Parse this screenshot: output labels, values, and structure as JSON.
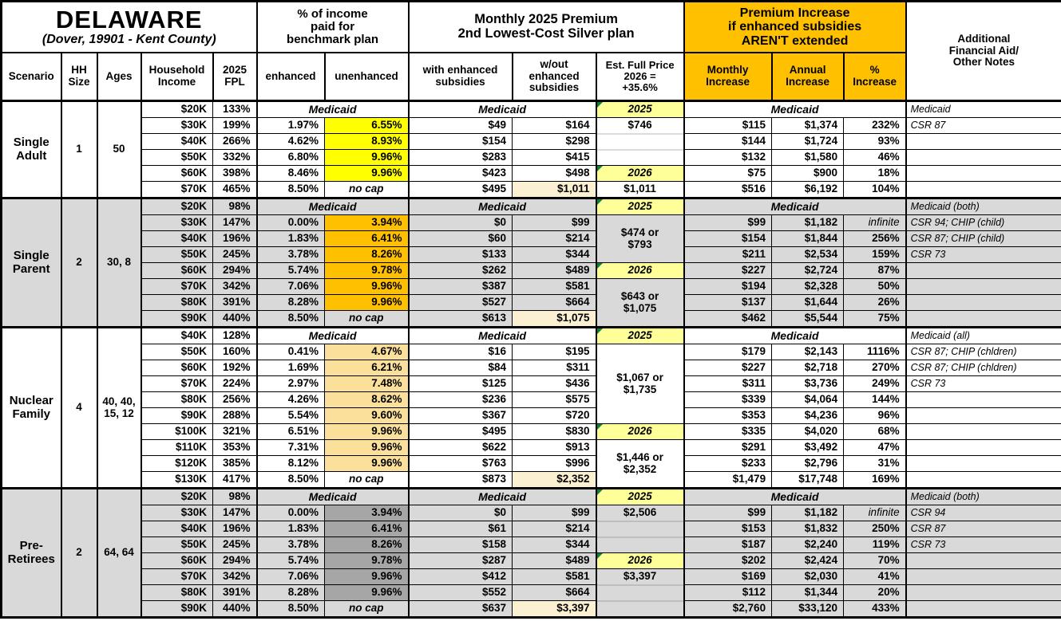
{
  "title": {
    "state": "DELAWARE",
    "location": "(Dover, 19901 - Kent County)"
  },
  "group_headers": {
    "income_pct": "% of income\npaid for\nbenchmark plan",
    "premium": "Monthly 2025 Premium\n2nd Lowest-Cost Silver plan",
    "increase": "Premium Increase\nif enhanced subsidies\nAREN'T extended",
    "notes": "Additional\nFinancial Aid/\nOther Notes"
  },
  "column_headers": {
    "scenario": "Scenario",
    "hh_size": "HH\nSize",
    "ages": "Ages",
    "income": "Household\nIncome",
    "fpl": "2025\nFPL",
    "enhanced": "enhanced",
    "unenhanced": "unenhanced",
    "with_sub": "with enhanced\nsubsidies",
    "wout_sub": "w/out\nenhanced\nsubsidies",
    "full_price": "Est. Full Price\n2026 =\n+35.6%",
    "monthly": "Monthly\nIncrease",
    "annual": "Annual\nIncrease",
    "pct": "%\nIncrease"
  },
  "labels": {
    "medicaid": "Medicaid",
    "no_cap": "no cap",
    "infinite": "infinite"
  },
  "colors": {
    "header_orange": "#FFC000",
    "yellow_highlight": "#FFFF00",
    "orange_highlight": "#FFC000",
    "gold_highlight": "#FBE09C",
    "dark_gray_highlight": "#A6A6A6",
    "cream_highlight": "#FCF0D2",
    "year_yellow": "#FFFF99",
    "section_gray": "#D9D9D9",
    "white": "#FFFFFF",
    "triangle_green": "#0C8040"
  },
  "sections": [
    {
      "name": "single-adult",
      "label": "Single\nAdult",
      "hh_size": "1",
      "ages": "50",
      "bg": "#FFFFFF",
      "unenhanced_bg": "#FFFF00",
      "rows": [
        {
          "income": "$20K",
          "fpl": "133%",
          "medicaid": true,
          "note": "Medicaid"
        },
        {
          "income": "$30K",
          "fpl": "199%",
          "enhanced": "1.97%",
          "unenhanced": "6.55%",
          "with_sub": "$49",
          "wout_sub": "$164",
          "monthly": "$115",
          "annual": "$1,374",
          "pct": "232%",
          "note": "CSR 87"
        },
        {
          "income": "$40K",
          "fpl": "266%",
          "enhanced": "4.62%",
          "unenhanced": "8.93%",
          "with_sub": "$154",
          "wout_sub": "$298",
          "monthly": "$144",
          "annual": "$1,724",
          "pct": "93%",
          "note": ""
        },
        {
          "income": "$50K",
          "fpl": "332%",
          "enhanced": "6.80%",
          "unenhanced": "9.96%",
          "with_sub": "$283",
          "wout_sub": "$415",
          "monthly": "$132",
          "annual": "$1,580",
          "pct": "46%",
          "note": ""
        },
        {
          "income": "$60K",
          "fpl": "398%",
          "enhanced": "8.46%",
          "unenhanced": "9.96%",
          "with_sub": "$423",
          "wout_sub": "$498",
          "monthly": "$75",
          "annual": "$900",
          "pct": "18%",
          "note": ""
        },
        {
          "income": "$70K",
          "fpl": "465%",
          "enhanced": "8.50%",
          "unenhanced": "no cap",
          "no_cap": true,
          "with_sub": "$495",
          "wout_sub": "$1,011",
          "wout_highlight": true,
          "monthly": "$516",
          "annual": "$6,192",
          "pct": "104%",
          "note": ""
        }
      ],
      "full_price": [
        {
          "row": 0,
          "span": 1,
          "text": "2025",
          "year": true
        },
        {
          "row": 1,
          "span": 3,
          "text": "$746",
          "valign": "top",
          "faint": true
        },
        {
          "row": 4,
          "span": 1,
          "text": "2026",
          "year": true
        },
        {
          "row": 5,
          "span": 1,
          "text": "$1,011"
        }
      ]
    },
    {
      "name": "single-parent",
      "label": "Single\nParent",
      "hh_size": "2",
      "ages": "30, 8",
      "bg": "#D9D9D9",
      "unenhanced_bg": "#FFC000",
      "rows": [
        {
          "income": "$20K",
          "fpl": "98%",
          "medicaid": true,
          "note": "Medicaid (both)"
        },
        {
          "income": "$30K",
          "fpl": "147%",
          "enhanced": "0.00%",
          "unenhanced": "3.94%",
          "with_sub": "$0",
          "wout_sub": "$99",
          "monthly": "$99",
          "annual": "$1,182",
          "pct": "infinite",
          "note": "CSR 94; CHIP (child)"
        },
        {
          "income": "$40K",
          "fpl": "196%",
          "enhanced": "1.83%",
          "unenhanced": "6.41%",
          "with_sub": "$60",
          "wout_sub": "$214",
          "monthly": "$154",
          "annual": "$1,844",
          "pct": "256%",
          "note": "CSR 87; CHIP (child)"
        },
        {
          "income": "$50K",
          "fpl": "245%",
          "enhanced": "3.78%",
          "unenhanced": "8.26%",
          "with_sub": "$133",
          "wout_sub": "$344",
          "monthly": "$211",
          "annual": "$2,534",
          "pct": "159%",
          "note": "CSR 73"
        },
        {
          "income": "$60K",
          "fpl": "294%",
          "enhanced": "5.74%",
          "unenhanced": "9.78%",
          "with_sub": "$262",
          "wout_sub": "$489",
          "monthly": "$227",
          "annual": "$2,724",
          "pct": "87%",
          "note": ""
        },
        {
          "income": "$70K",
          "fpl": "342%",
          "enhanced": "7.06%",
          "unenhanced": "9.96%",
          "with_sub": "$387",
          "wout_sub": "$581",
          "monthly": "$194",
          "annual": "$2,328",
          "pct": "50%",
          "note": ""
        },
        {
          "income": "$80K",
          "fpl": "391%",
          "enhanced": "8.28%",
          "unenhanced": "9.96%",
          "with_sub": "$527",
          "wout_sub": "$664",
          "monthly": "$137",
          "annual": "$1,644",
          "pct": "26%",
          "note": ""
        },
        {
          "income": "$90K",
          "fpl": "440%",
          "enhanced": "8.50%",
          "unenhanced": "no cap",
          "no_cap": true,
          "with_sub": "$613",
          "wout_sub": "$1,075",
          "wout_highlight": true,
          "monthly": "$462",
          "annual": "$5,544",
          "pct": "75%",
          "note": ""
        }
      ],
      "full_price": [
        {
          "row": 0,
          "span": 1,
          "text": "2025",
          "year": true
        },
        {
          "row": 1,
          "span": 3,
          "text": "$474 or\n$793"
        },
        {
          "row": 4,
          "span": 1,
          "text": "2026",
          "year": true
        },
        {
          "row": 5,
          "span": 3,
          "text": "$643 or\n$1,075"
        }
      ]
    },
    {
      "name": "nuclear-family",
      "label": "Nuclear\nFamily",
      "hh_size": "4",
      "ages": "40, 40,\n15, 12",
      "bg": "#FFFFFF",
      "unenhanced_bg": "#FBE09C",
      "rows": [
        {
          "income": "$40K",
          "fpl": "128%",
          "medicaid": true,
          "note": "Medicaid (all)"
        },
        {
          "income": "$50K",
          "fpl": "160%",
          "enhanced": "0.41%",
          "unenhanced": "4.67%",
          "with_sub": "$16",
          "wout_sub": "$195",
          "monthly": "$179",
          "annual": "$2,143",
          "pct": "1116%",
          "note": "CSR 87; CHIP (chldren)"
        },
        {
          "income": "$60K",
          "fpl": "192%",
          "enhanced": "1.69%",
          "unenhanced": "6.21%",
          "with_sub": "$84",
          "wout_sub": "$311",
          "monthly": "$227",
          "annual": "$2,718",
          "pct": "270%",
          "note": "CSR 87; CHIP (chldren)"
        },
        {
          "income": "$70K",
          "fpl": "224%",
          "enhanced": "2.97%",
          "unenhanced": "7.48%",
          "with_sub": "$125",
          "wout_sub": "$436",
          "monthly": "$311",
          "annual": "$3,736",
          "pct": "249%",
          "note": "CSR 73"
        },
        {
          "income": "$80K",
          "fpl": "256%",
          "enhanced": "4.26%",
          "unenhanced": "8.62%",
          "with_sub": "$236",
          "wout_sub": "$575",
          "monthly": "$339",
          "annual": "$4,064",
          "pct": "144%",
          "note": ""
        },
        {
          "income": "$90K",
          "fpl": "288%",
          "enhanced": "5.54%",
          "unenhanced": "9.60%",
          "with_sub": "$367",
          "wout_sub": "$720",
          "monthly": "$353",
          "annual": "$4,236",
          "pct": "96%",
          "note": ""
        },
        {
          "income": "$100K",
          "fpl": "321%",
          "enhanced": "6.51%",
          "unenhanced": "9.96%",
          "with_sub": "$495",
          "wout_sub": "$830",
          "monthly": "$335",
          "annual": "$4,020",
          "pct": "68%",
          "note": ""
        },
        {
          "income": "$110K",
          "fpl": "353%",
          "enhanced": "7.31%",
          "unenhanced": "9.96%",
          "with_sub": "$622",
          "wout_sub": "$913",
          "monthly": "$291",
          "annual": "$3,492",
          "pct": "47%",
          "note": ""
        },
        {
          "income": "$120K",
          "fpl": "385%",
          "enhanced": "8.12%",
          "unenhanced": "9.96%",
          "with_sub": "$763",
          "wout_sub": "$996",
          "monthly": "$233",
          "annual": "$2,796",
          "pct": "31%",
          "note": ""
        },
        {
          "income": "$130K",
          "fpl": "417%",
          "enhanced": "8.50%",
          "unenhanced": "no cap",
          "no_cap": true,
          "with_sub": "$873",
          "wout_sub": "$2,352",
          "wout_highlight": true,
          "monthly": "$1,479",
          "annual": "$17,748",
          "pct": "169%",
          "note": ""
        }
      ],
      "full_price": [
        {
          "row": 0,
          "span": 1,
          "text": "2025",
          "year": true
        },
        {
          "row": 1,
          "span": 5,
          "text": "$1,067 or\n$1,735"
        },
        {
          "row": 6,
          "span": 1,
          "text": "2026",
          "year": true
        },
        {
          "row": 7,
          "span": 3,
          "text": "$1,446 or\n$2,352"
        }
      ]
    },
    {
      "name": "pre-retirees",
      "label": "Pre-\nRetirees",
      "hh_size": "2",
      "ages": "64, 64",
      "bg": "#D9D9D9",
      "unenhanced_bg": "#A6A6A6",
      "rows": [
        {
          "income": "$20K",
          "fpl": "98%",
          "medicaid": true,
          "note": "Medicaid (both)"
        },
        {
          "income": "$30K",
          "fpl": "147%",
          "enhanced": "0.00%",
          "unenhanced": "3.94%",
          "with_sub": "$0",
          "wout_sub": "$99",
          "monthly": "$99",
          "annual": "$1,182",
          "pct": "infinite",
          "note": "CSR 94"
        },
        {
          "income": "$40K",
          "fpl": "196%",
          "enhanced": "1.83%",
          "unenhanced": "6.41%",
          "with_sub": "$61",
          "wout_sub": "$214",
          "monthly": "$153",
          "annual": "$1,832",
          "pct": "250%",
          "note": "CSR 87"
        },
        {
          "income": "$50K",
          "fpl": "245%",
          "enhanced": "3.78%",
          "unenhanced": "8.26%",
          "with_sub": "$158",
          "wout_sub": "$344",
          "monthly": "$187",
          "annual": "$2,240",
          "pct": "119%",
          "note": "CSR 73"
        },
        {
          "income": "$60K",
          "fpl": "294%",
          "enhanced": "5.74%",
          "unenhanced": "9.78%",
          "with_sub": "$287",
          "wout_sub": "$489",
          "monthly": "$202",
          "annual": "$2,424",
          "pct": "70%",
          "note": ""
        },
        {
          "income": "$70K",
          "fpl": "342%",
          "enhanced": "7.06%",
          "unenhanced": "9.96%",
          "with_sub": "$412",
          "wout_sub": "$581",
          "monthly": "$169",
          "annual": "$2,030",
          "pct": "41%",
          "note": ""
        },
        {
          "income": "$80K",
          "fpl": "391%",
          "enhanced": "8.28%",
          "unenhanced": "9.96%",
          "with_sub": "$552",
          "wout_sub": "$664",
          "monthly": "$112",
          "annual": "$1,344",
          "pct": "20%",
          "note": ""
        },
        {
          "income": "$90K",
          "fpl": "440%",
          "enhanced": "8.50%",
          "unenhanced": "no cap",
          "no_cap": true,
          "with_sub": "$637",
          "wout_sub": "$3,397",
          "wout_highlight": true,
          "monthly": "$2,760",
          "annual": "$33,120",
          "pct": "433%",
          "note": ""
        }
      ],
      "full_price": [
        {
          "row": 0,
          "span": 1,
          "text": "2025",
          "year": true
        },
        {
          "row": 1,
          "span": 3,
          "text": "$2,506",
          "valign": "top",
          "faint": true
        },
        {
          "row": 4,
          "span": 1,
          "text": "2026",
          "year": true
        },
        {
          "row": 5,
          "span": 3,
          "text": "$3,397",
          "valign": "top",
          "faint": true
        }
      ]
    }
  ]
}
